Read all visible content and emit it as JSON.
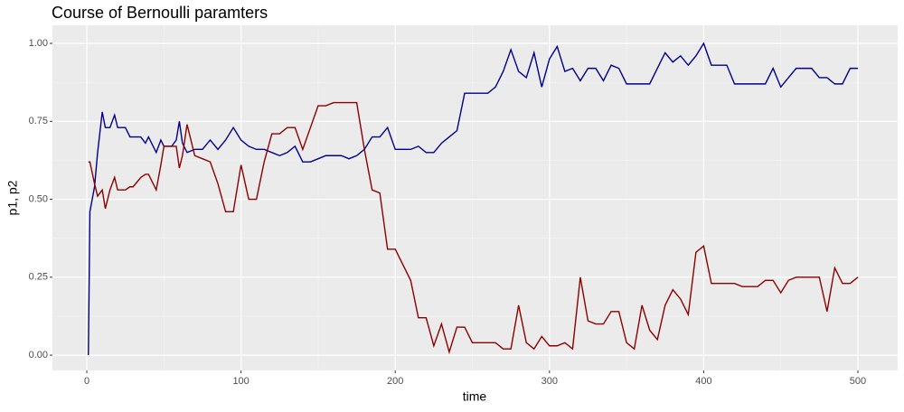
{
  "chart_data": {
    "type": "line",
    "title": "Course of Bernoulli paramters",
    "x_label": "time",
    "y_label": "p1, p2",
    "x": [
      1,
      2,
      5,
      7,
      10,
      12,
      15,
      18,
      20,
      25,
      28,
      30,
      35,
      38,
      40,
      45,
      48,
      50,
      55,
      58,
      60,
      62,
      65,
      70,
      75,
      80,
      85,
      90,
      95,
      100,
      105,
      110,
      115,
      120,
      125,
      130,
      135,
      140,
      145,
      150,
      155,
      160,
      165,
      170,
      175,
      180,
      185,
      190,
      195,
      200,
      205,
      210,
      215,
      220,
      225,
      230,
      235,
      240,
      245,
      250,
      255,
      260,
      265,
      270,
      275,
      280,
      285,
      290,
      295,
      300,
      305,
      310,
      315,
      320,
      325,
      330,
      335,
      340,
      345,
      350,
      355,
      360,
      365,
      370,
      375,
      380,
      385,
      390,
      395,
      400,
      405,
      410,
      415,
      420,
      425,
      430,
      435,
      440,
      445,
      450,
      455,
      460,
      465,
      470,
      475,
      480,
      485,
      490,
      495,
      500
    ],
    "series": [
      {
        "color": "#00008b",
        "values": [
          0.0,
          0.46,
          0.54,
          0.65,
          0.78,
          0.73,
          0.73,
          0.77,
          0.73,
          0.73,
          0.7,
          0.7,
          0.7,
          0.68,
          0.7,
          0.65,
          0.69,
          0.67,
          0.67,
          0.69,
          0.75,
          0.68,
          0.65,
          0.66,
          0.66,
          0.69,
          0.66,
          0.69,
          0.73,
          0.69,
          0.67,
          0.66,
          0.66,
          0.65,
          0.64,
          0.65,
          0.67,
          0.62,
          0.62,
          0.63,
          0.64,
          0.64,
          0.64,
          0.63,
          0.64,
          0.66,
          0.7,
          0.7,
          0.73,
          0.66,
          0.66,
          0.66,
          0.67,
          0.65,
          0.65,
          0.68,
          0.7,
          0.72,
          0.84,
          0.84,
          0.84,
          0.84,
          0.86,
          0.91,
          0.98,
          0.91,
          0.89,
          0.97,
          0.86,
          0.95,
          0.99,
          0.91,
          0.92,
          0.88,
          0.92,
          0.92,
          0.88,
          0.93,
          0.92,
          0.87,
          0.87,
          0.87,
          0.87,
          0.92,
          0.97,
          0.94,
          0.96,
          0.93,
          0.96,
          1.0,
          0.93,
          0.93,
          0.93,
          0.87,
          0.87,
          0.87,
          0.87,
          0.87,
          0.92,
          0.86,
          0.89,
          0.92,
          0.92,
          0.92,
          0.89,
          0.89,
          0.87,
          0.87,
          0.92,
          0.92
        ]
      },
      {
        "color": "#8b0000",
        "values": [
          0.62,
          0.62,
          0.55,
          0.51,
          0.53,
          0.47,
          0.53,
          0.57,
          0.53,
          0.53,
          0.54,
          0.54,
          0.57,
          0.58,
          0.58,
          0.53,
          0.61,
          0.67,
          0.67,
          0.67,
          0.6,
          0.64,
          0.74,
          0.64,
          0.63,
          0.62,
          0.55,
          0.46,
          0.46,
          0.61,
          0.5,
          0.5,
          0.62,
          0.71,
          0.71,
          0.73,
          0.73,
          0.66,
          0.73,
          0.8,
          0.8,
          0.81,
          0.81,
          0.81,
          0.81,
          0.66,
          0.53,
          0.52,
          0.34,
          0.34,
          0.29,
          0.24,
          0.12,
          0.12,
          0.03,
          0.1,
          0.01,
          0.09,
          0.09,
          0.04,
          0.04,
          0.04,
          0.04,
          0.02,
          0.02,
          0.16,
          0.04,
          0.02,
          0.06,
          0.03,
          0.03,
          0.04,
          0.02,
          0.25,
          0.11,
          0.1,
          0.1,
          0.14,
          0.14,
          0.04,
          0.02,
          0.16,
          0.08,
          0.05,
          0.16,
          0.21,
          0.18,
          0.13,
          0.33,
          0.35,
          0.23,
          0.23,
          0.23,
          0.23,
          0.22,
          0.22,
          0.22,
          0.24,
          0.24,
          0.2,
          0.24,
          0.25,
          0.25,
          0.25,
          0.25,
          0.14,
          0.28,
          0.23,
          0.23,
          0.25
        ]
      }
    ],
    "xlim": [
      -22.3,
      525.8
    ],
    "ylim": [
      -0.049,
      1.058
    ],
    "xticks": [
      0,
      100,
      200,
      300,
      400,
      500
    ],
    "yticks": [
      {
        "value": 0,
        "label": "0.00"
      },
      {
        "value": 0.25,
        "label": "0.25"
      },
      {
        "value": 0.5,
        "label": "0.50"
      },
      {
        "value": 0.75,
        "label": "0.75"
      },
      {
        "value": 1,
        "label": "1.00"
      }
    ],
    "xminorticks": [
      50,
      150,
      250,
      350,
      450
    ],
    "yminorticks": [
      0.125,
      0.375,
      0.625,
      0.875
    ],
    "grid": true
  }
}
